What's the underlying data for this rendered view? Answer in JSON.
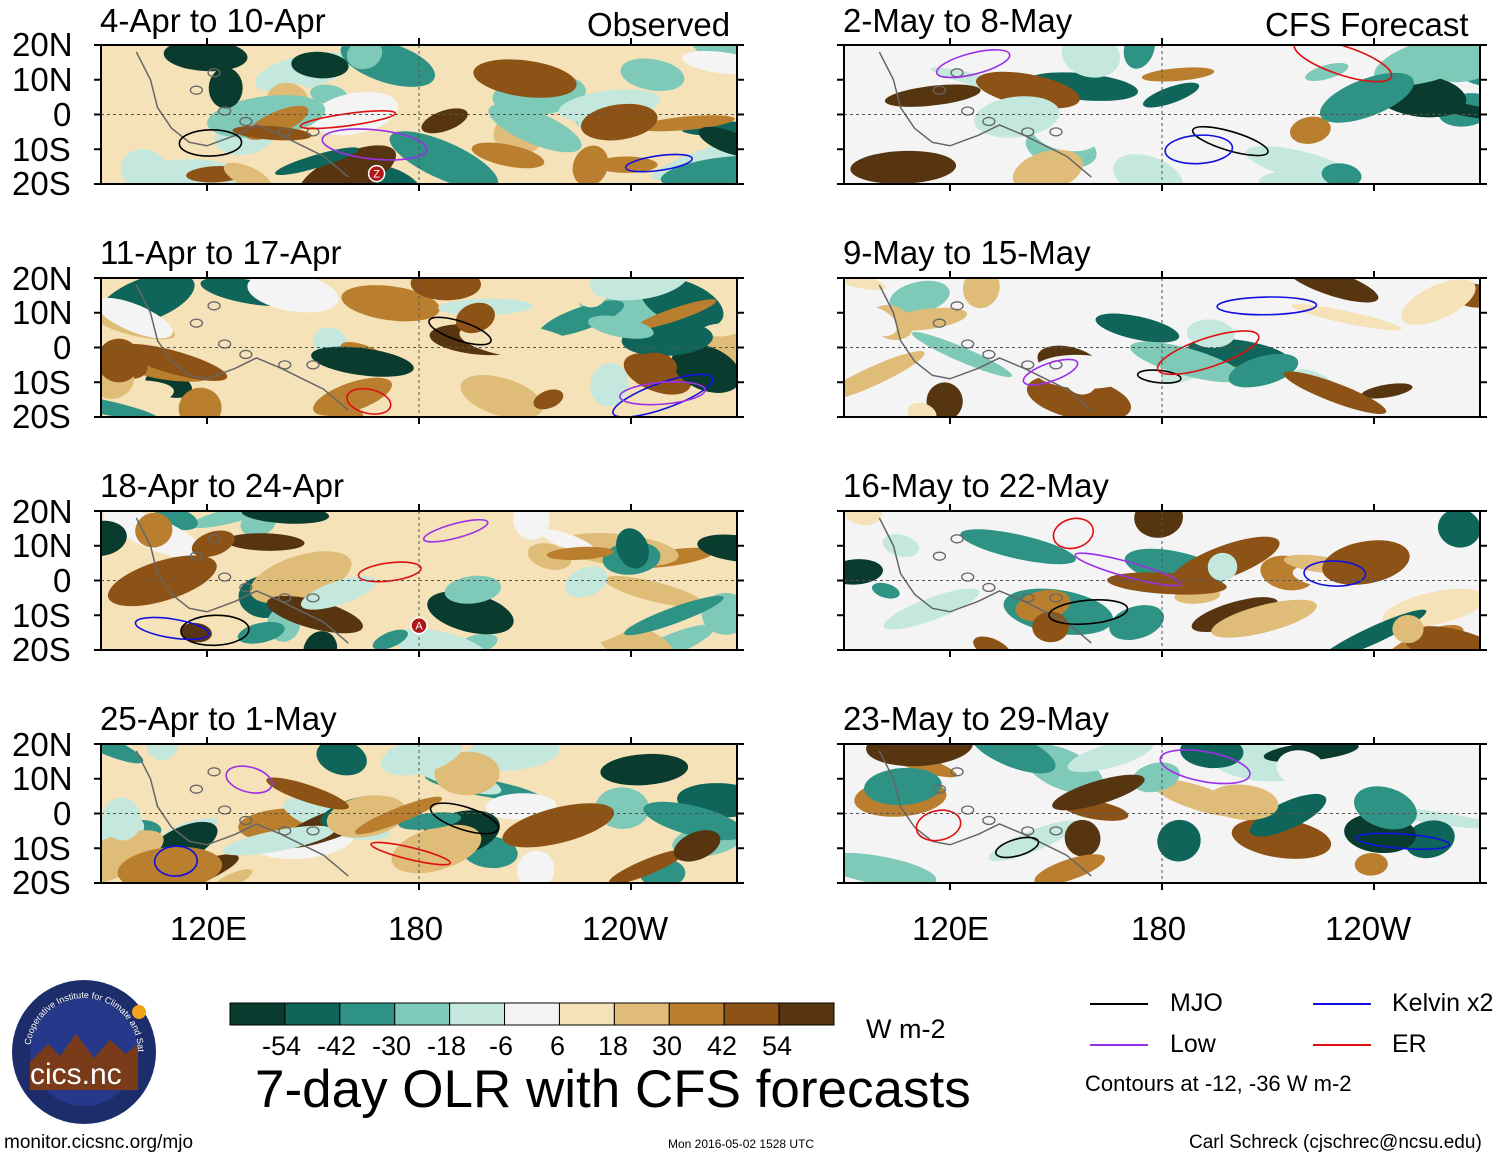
{
  "chart_data": {
    "type": "heatmap",
    "title": "7-day OLR with CFS forecasts",
    "variable": "OLR anomaly",
    "units": "W m-2",
    "lat_range": [
      -20,
      20
    ],
    "lon_range": [
      90,
      270
    ],
    "lat_ticks": [
      "20N",
      "10N",
      "0",
      "10S",
      "20S"
    ],
    "lon_ticks": [
      "120E",
      "180",
      "120W"
    ],
    "colorbar": {
      "tick_labels": [
        "-54",
        "-42",
        "-30",
        "-18",
        "-6",
        "6",
        "18",
        "30",
        "42",
        "54"
      ],
      "colors": [
        "#0a3b2f",
        "#0f6559",
        "#2e9385",
        "#7fc9b8",
        "#c4e8de",
        "#f4f4f4",
        "#f5e2b8",
        "#dfbc78",
        "#b97f2f",
        "#8c5216",
        "#573510"
      ]
    },
    "columns": [
      {
        "label": "Observed",
        "panels": [
          "4-Apr to 10-Apr",
          "11-Apr to 17-Apr",
          "18-Apr to 24-Apr",
          "25-Apr to 1-May"
        ]
      },
      {
        "label": "CFS Forecast",
        "panels": [
          "2-May to 8-May",
          "9-May to 15-May",
          "16-May to 22-May",
          "23-May to 29-May"
        ]
      }
    ],
    "legend": [
      {
        "name": "MJO",
        "color": "#000000"
      },
      {
        "name": "Kelvin x2",
        "color": "#1010e0"
      },
      {
        "name": "Low",
        "color": "#9b30e8"
      },
      {
        "name": "ER",
        "color": "#e01010"
      }
    ],
    "contour_levels": "Contours at -12, -36 W m-2",
    "storm_markers": [
      "Z",
      "A"
    ]
  },
  "footer": {
    "logo_text": "cics.nc",
    "logo_ring_text": "Cooperative Institute for Climate and Satellites",
    "url": "monitor.cicsnc.org/mjo",
    "timestamp": "Mon 2016-05-02 1528 UTC",
    "author": "Carl Schreck (cjschrec@ncsu.edu)"
  }
}
